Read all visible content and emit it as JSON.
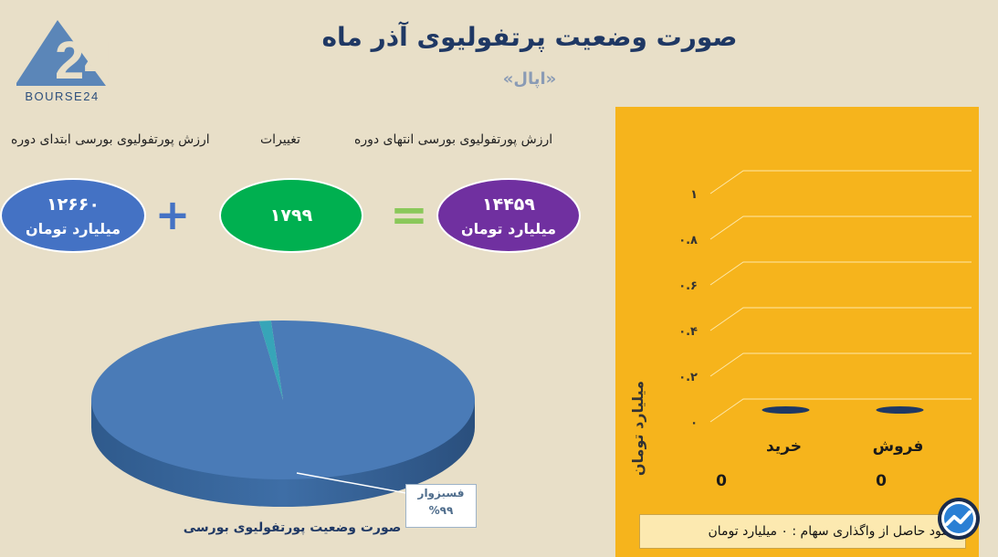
{
  "header": {
    "title": "صورت وضعیت پرتفولیوی آذر ماه",
    "subtitle": "«اپال»",
    "logo_text": "BOURSE24",
    "logo_mark": "24"
  },
  "summary": {
    "end_label": "ارزش پورتفولیوی بورسی انتهای دوره",
    "change_label": "تغییرات",
    "start_label": "ارزش پورتفولیوی بورسی ابتدای دوره",
    "end_value": "۱۴۴۵۹",
    "change_value": "۱۷۹۹",
    "start_value": "۱۲۶۶۰",
    "unit": "میلیارد تومان",
    "equals_sign": "=",
    "plus_sign": "+",
    "colors": {
      "end": "#7030a0",
      "change": "#00b050",
      "start": "#4472c4",
      "operators": "#8eaadb"
    }
  },
  "chart_data": [
    {
      "type": "pie",
      "title": "صورت وضعیت پورتفولیوی بورسی",
      "slices": [
        {
          "label": "فسبزوار",
          "value": 99,
          "color": "#4a7bb7"
        },
        {
          "label": "",
          "value": 1,
          "color": "#37a5b8"
        }
      ],
      "callout": {
        "line1": "فسبزوار",
        "line2": "%۹۹"
      }
    },
    {
      "type": "bar",
      "categories": [
        "خرید",
        "فروش"
      ],
      "values": [
        0,
        0
      ],
      "value_labels": [
        "0",
        "0"
      ],
      "ylabel": "میلیارد تومان",
      "ylim": [
        0,
        1
      ],
      "yticks": [
        0,
        0.2,
        0.4,
        0.6,
        0.8,
        1
      ],
      "ytick_labels": [
        "۰",
        "۰.۲",
        "۰.۴",
        "۰.۶",
        "۰.۸",
        "۱"
      ],
      "grid": true,
      "background": "#f6b41c",
      "bar_color": "#1f3864"
    }
  ],
  "footer": {
    "note": "سود حاصل از واگذاری سهام : ۰ میلیارد تومان"
  }
}
